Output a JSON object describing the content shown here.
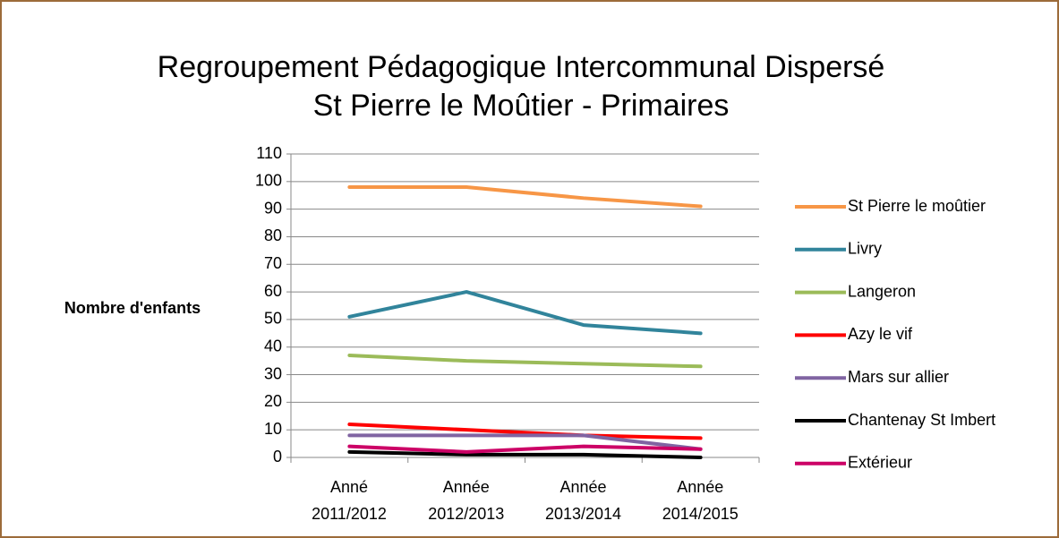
{
  "chart_data": {
    "type": "line",
    "title": "Regroupement Pédagogique Intercommunal Dispersé",
    "subtitle": "St Pierre le Moûtier - Primaires",
    "y_label": "Nombre d'enfants",
    "categories": [
      "Anné\n2011/2012",
      "Année\n2012/2013",
      "Année\n2013/2014",
      "Année\n2014/2015"
    ],
    "series": [
      {
        "name": "St Pierre le moûtier",
        "color": "#f79646",
        "values": [
          98,
          98,
          94,
          91
        ]
      },
      {
        "name": "Livry",
        "color": "#31849b",
        "values": [
          51,
          60,
          48,
          45
        ]
      },
      {
        "name": "Langeron",
        "color": "#9bbb59",
        "values": [
          37,
          35,
          34,
          33
        ]
      },
      {
        "name": "Azy le vif",
        "color": "#ff0000",
        "values": [
          12,
          10,
          8,
          7
        ]
      },
      {
        "name": "Mars sur allier",
        "color": "#8064a2",
        "values": [
          8,
          8,
          8,
          3
        ]
      },
      {
        "name": "Chantenay St Imbert",
        "color": "#000000",
        "values": [
          2,
          1,
          1,
          0
        ]
      },
      {
        "name": "Extérieur",
        "color": "#cc0066",
        "values": [
          4,
          2,
          4,
          3
        ]
      }
    ],
    "ylim": [
      0,
      110
    ],
    "yticks": [
      0,
      10,
      20,
      30,
      40,
      50,
      60,
      70,
      80,
      90,
      100,
      110
    ],
    "grid": true,
    "legend": "right"
  }
}
